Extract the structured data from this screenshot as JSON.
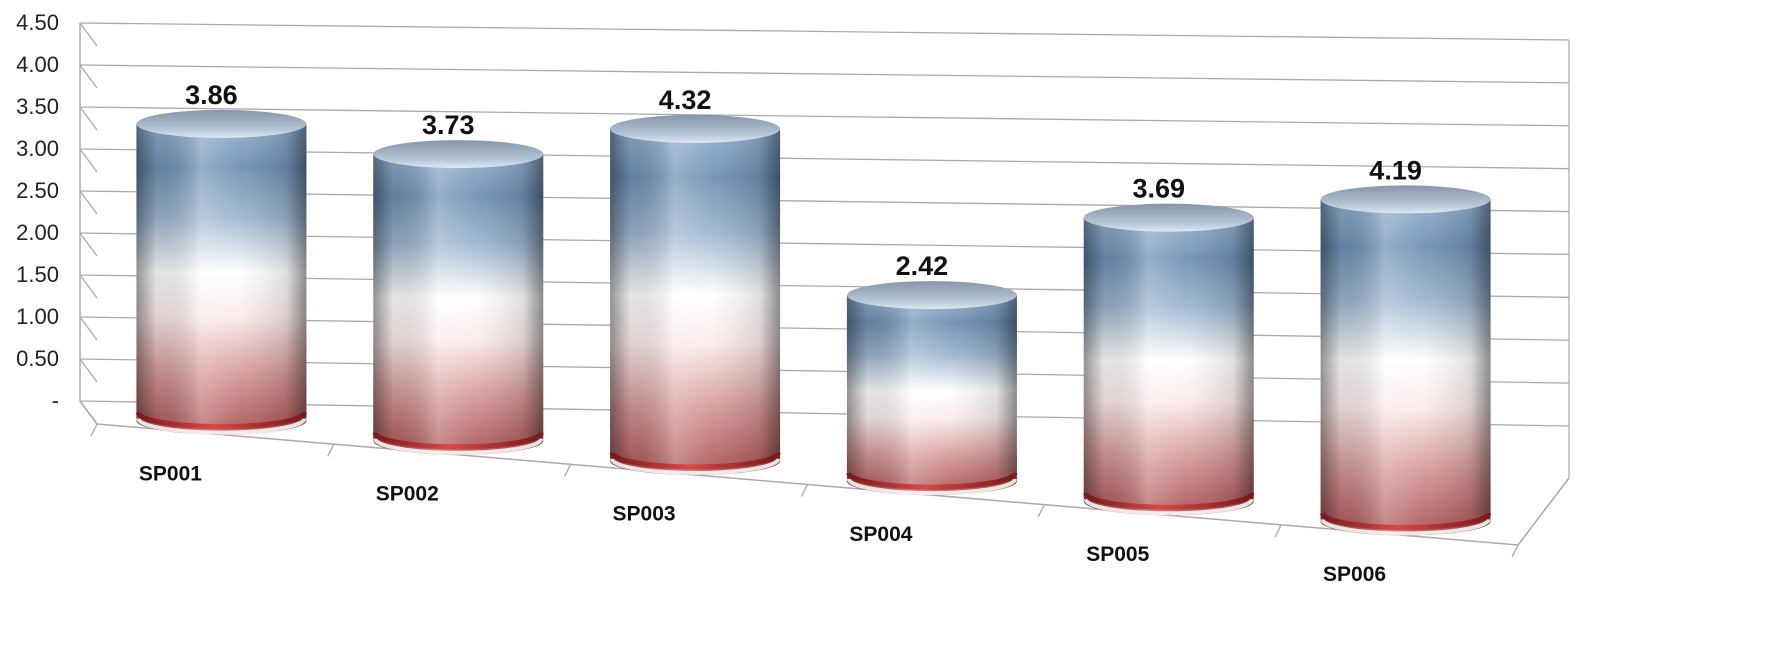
{
  "chart_data": {
    "type": "bar",
    "style": "3d-cylinder",
    "categories": [
      "SP001",
      "SP002",
      "SP003",
      "SP004",
      "SP005",
      "SP006"
    ],
    "values": [
      3.86,
      3.73,
      4.32,
      2.42,
      3.69,
      4.19
    ],
    "data_labels": [
      "3.86",
      "3.73",
      "4.32",
      "2.42",
      "3.69",
      "4.19"
    ],
    "y_ticks": [
      "-",
      "0.50",
      "1.00",
      "1.50",
      "2.00",
      "2.50",
      "3.00",
      "3.50",
      "4.00",
      "4.50"
    ],
    "ylim": [
      0,
      4.5
    ],
    "grid": true,
    "legend": "none",
    "colors": {
      "top": "#7f9fc0",
      "middle": "#ffffff",
      "bottom": "#c45a5a",
      "rim": "#b83a3a",
      "grid": "#aaaaaa"
    }
  }
}
